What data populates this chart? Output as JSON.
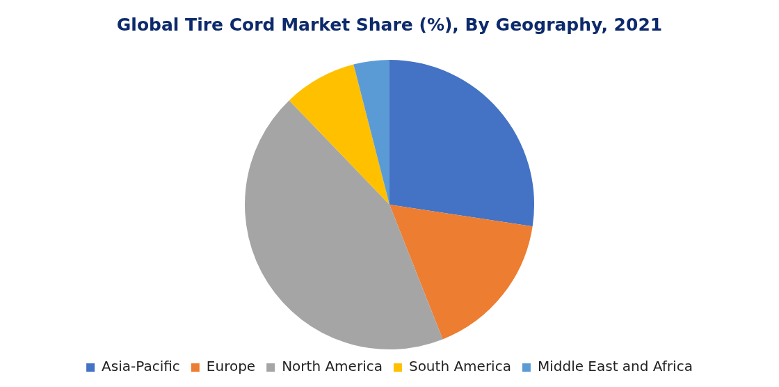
{
  "chart_data": {
    "type": "pie",
    "title": "Global Tire Cord Market Share (%), By Geography, 2021",
    "categories": [
      "Asia-Pacific",
      "Europe",
      "North America",
      "South America",
      "Middle East and Africa"
    ],
    "values": [
      27.4,
      16.6,
      43.8,
      8.2,
      4.0
    ],
    "colors": [
      "#4472c4",
      "#ed7d31",
      "#a5a5a5",
      "#ffc000",
      "#5b9bd5"
    ],
    "legend": "bottom"
  }
}
